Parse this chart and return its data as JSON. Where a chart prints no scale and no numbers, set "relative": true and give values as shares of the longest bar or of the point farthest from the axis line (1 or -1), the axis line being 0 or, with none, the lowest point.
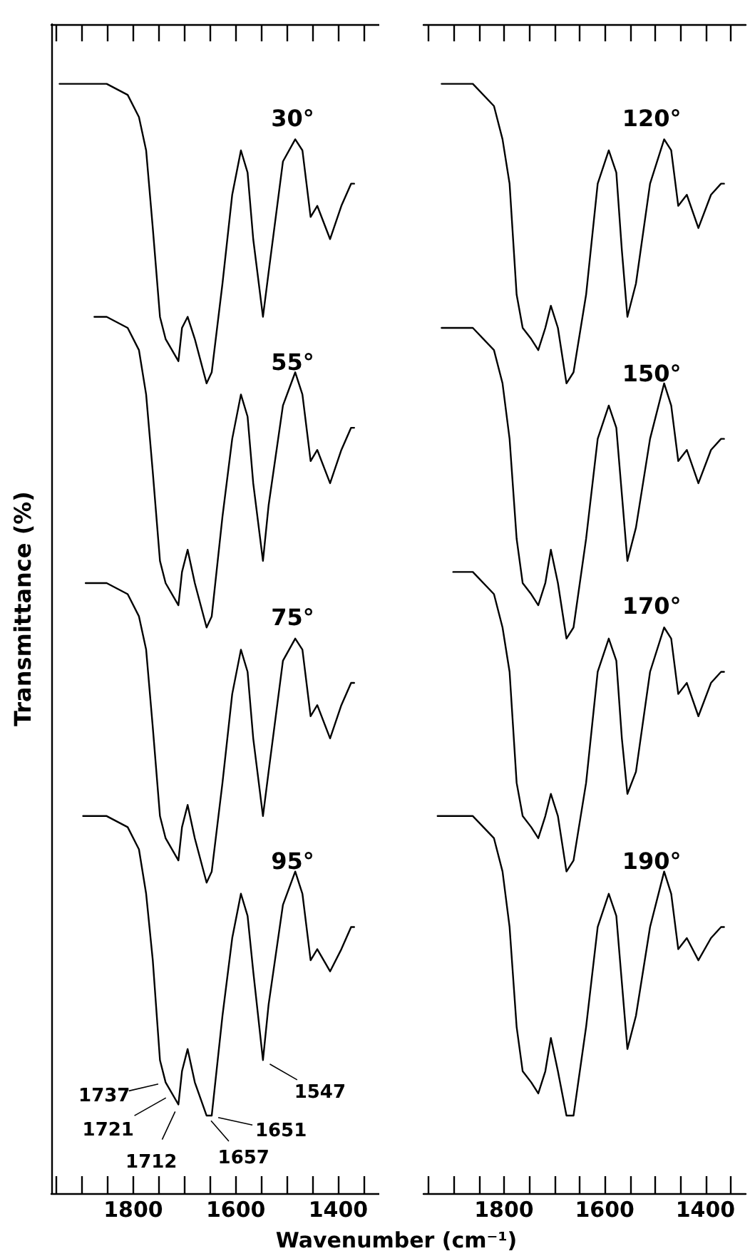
{
  "chart_data": [
    {
      "type": "line",
      "ylabel": "Transmittance (%)",
      "xlabel": "Wavenumber (cm⁻¹)",
      "relative": true,
      "xlim": [
        1960,
        1320
      ],
      "xticks": [
        {
          "value": 1950,
          "label": null
        },
        {
          "value": 1900,
          "label": null
        },
        {
          "value": 1850,
          "label": null
        },
        1800,
        {
          "value": 1750,
          "label": null
        },
        {
          "value": 1700,
          "label": null
        },
        {
          "value": 1650,
          "label": null
        },
        1600,
        {
          "value": 1550,
          "label": null
        },
        {
          "value": 1500,
          "label": null
        },
        {
          "value": 1450,
          "label": null
        },
        1400,
        {
          "value": 1350,
          "label": null
        }
      ],
      "tick_labels": "x",
      "grid": false,
      "legend": false,
      "marker": "none",
      "series": [
        {
          "name": "30°",
          "color": "#000000",
          "x": [
            1944,
            1852,
            1811,
            1789,
            1775,
            1762,
            1748,
            1737,
            1712,
            1705,
            1694,
            1680,
            1657,
            1647,
            1626,
            1607,
            1590,
            1577,
            1566,
            1547,
            1536,
            1508,
            1484,
            1470,
            1454,
            1441,
            1416,
            1394,
            1375,
            1369
          ],
          "values": [
            1.0,
            1.0,
            0.99,
            0.97,
            0.94,
            0.87,
            0.79,
            0.77,
            0.75,
            0.78,
            0.79,
            0.77,
            0.73,
            0.74,
            0.82,
            0.9,
            0.94,
            0.92,
            0.86,
            0.79,
            0.83,
            0.93,
            0.95,
            0.94,
            0.88,
            0.89,
            0.86,
            0.89,
            0.91,
            0.91
          ]
        },
        {
          "name": "55°",
          "color": "#000000",
          "x": [
            1876,
            1852,
            1811,
            1789,
            1775,
            1762,
            1748,
            1737,
            1712,
            1705,
            1694,
            1680,
            1657,
            1647,
            1626,
            1607,
            1590,
            1577,
            1566,
            1547,
            1536,
            1508,
            1484,
            1470,
            1454,
            1441,
            1416,
            1394,
            1375,
            1369
          ],
          "values": [
            0.79,
            0.79,
            0.78,
            0.76,
            0.72,
            0.65,
            0.57,
            0.55,
            0.53,
            0.56,
            0.58,
            0.55,
            0.51,
            0.52,
            0.61,
            0.68,
            0.72,
            0.7,
            0.64,
            0.57,
            0.62,
            0.71,
            0.74,
            0.72,
            0.66,
            0.67,
            0.64,
            0.67,
            0.69,
            0.69
          ]
        },
        {
          "name": "75°",
          "color": "#000000",
          "x": [
            1893,
            1852,
            1811,
            1789,
            1775,
            1762,
            1748,
            1737,
            1712,
            1705,
            1694,
            1680,
            1657,
            1647,
            1626,
            1607,
            1590,
            1577,
            1566,
            1547,
            1536,
            1508,
            1484,
            1470,
            1454,
            1441,
            1416,
            1394,
            1375,
            1369
          ],
          "values": [
            0.55,
            0.55,
            0.54,
            0.52,
            0.49,
            0.42,
            0.34,
            0.32,
            0.3,
            0.33,
            0.35,
            0.32,
            0.28,
            0.29,
            0.37,
            0.45,
            0.49,
            0.47,
            0.41,
            0.34,
            0.38,
            0.48,
            0.5,
            0.49,
            0.43,
            0.44,
            0.41,
            0.44,
            0.46,
            0.46
          ]
        },
        {
          "name": "95°",
          "color": "#000000",
          "x": [
            1898,
            1852,
            1811,
            1789,
            1775,
            1762,
            1748,
            1737,
            1712,
            1705,
            1694,
            1680,
            1657,
            1647,
            1626,
            1607,
            1590,
            1577,
            1566,
            1547,
            1536,
            1508,
            1484,
            1470,
            1454,
            1441,
            1416,
            1394,
            1375,
            1369
          ],
          "values": [
            0.34,
            0.34,
            0.33,
            0.31,
            0.27,
            0.21,
            0.12,
            0.1,
            0.08,
            0.11,
            0.13,
            0.1,
            0.07,
            0.07,
            0.16,
            0.23,
            0.27,
            0.25,
            0.2,
            0.12,
            0.17,
            0.26,
            0.29,
            0.27,
            0.21,
            0.22,
            0.2,
            0.22,
            0.24,
            0.24
          ]
        }
      ],
      "annotations": [
        {
          "text": "1737",
          "x": 1737,
          "y": 0.1
        },
        {
          "text": "1721",
          "x": 1721,
          "y": 0.09
        },
        {
          "text": "1712",
          "x": 1712,
          "y": 0.08
        },
        {
          "text": "1657",
          "x": 1657,
          "y": 0.07
        },
        {
          "text": "1651",
          "x": 1651,
          "y": 0.07
        },
        {
          "text": "1547",
          "x": 1547,
          "y": 0.12
        }
      ]
    },
    {
      "type": "line",
      "relative": true,
      "xlim": [
        1960,
        1320
      ],
      "xticks": [
        {
          "value": 1950,
          "label": null
        },
        {
          "value": 1900,
          "label": null
        },
        {
          "value": 1850,
          "label": null
        },
        1800,
        {
          "value": 1750,
          "label": null
        },
        {
          "value": 1700,
          "label": null
        },
        {
          "value": 1650,
          "label": null
        },
        1600,
        {
          "value": 1550,
          "label": null
        },
        {
          "value": 1500,
          "label": null
        },
        {
          "value": 1450,
          "label": null
        },
        1400,
        {
          "value": 1350,
          "label": null
        }
      ],
      "tick_labels": "x",
      "grid": false,
      "legend": false,
      "marker": "none",
      "series": [
        {
          "name": "120°",
          "color": "#000000",
          "x": [
            1924,
            1862,
            1820,
            1803,
            1789,
            1775,
            1763,
            1746,
            1732,
            1718,
            1707,
            1693,
            1676,
            1662,
            1637,
            1614,
            1592,
            1577,
            1566,
            1555,
            1538,
            1510,
            1482,
            1468,
            1454,
            1437,
            1414,
            1389,
            1369,
            1363
          ],
          "values": [
            1.0,
            1.0,
            0.98,
            0.95,
            0.91,
            0.81,
            0.78,
            0.77,
            0.76,
            0.78,
            0.8,
            0.78,
            0.73,
            0.74,
            0.81,
            0.91,
            0.94,
            0.92,
            0.85,
            0.79,
            0.82,
            0.91,
            0.95,
            0.94,
            0.89,
            0.9,
            0.87,
            0.9,
            0.91,
            0.91
          ]
        },
        {
          "name": "150°",
          "color": "#000000",
          "x": [
            1924,
            1862,
            1820,
            1803,
            1789,
            1775,
            1763,
            1746,
            1732,
            1718,
            1707,
            1693,
            1676,
            1662,
            1637,
            1614,
            1592,
            1577,
            1566,
            1555,
            1538,
            1510,
            1482,
            1468,
            1454,
            1437,
            1414,
            1389,
            1369,
            1363
          ],
          "values": [
            0.78,
            0.78,
            0.76,
            0.73,
            0.68,
            0.59,
            0.55,
            0.54,
            0.53,
            0.55,
            0.58,
            0.55,
            0.5,
            0.51,
            0.59,
            0.68,
            0.71,
            0.69,
            0.63,
            0.57,
            0.6,
            0.68,
            0.73,
            0.71,
            0.66,
            0.67,
            0.64,
            0.67,
            0.68,
            0.68
          ]
        },
        {
          "name": "170°",
          "color": "#000000",
          "x": [
            1901,
            1862,
            1820,
            1803,
            1789,
            1775,
            1763,
            1746,
            1732,
            1718,
            1707,
            1693,
            1676,
            1662,
            1637,
            1614,
            1592,
            1577,
            1566,
            1555,
            1538,
            1510,
            1482,
            1468,
            1454,
            1437,
            1414,
            1389,
            1369,
            1363
          ],
          "values": [
            0.56,
            0.56,
            0.54,
            0.51,
            0.47,
            0.37,
            0.34,
            0.33,
            0.32,
            0.34,
            0.36,
            0.34,
            0.29,
            0.3,
            0.37,
            0.47,
            0.5,
            0.48,
            0.41,
            0.36,
            0.38,
            0.47,
            0.51,
            0.5,
            0.45,
            0.46,
            0.43,
            0.46,
            0.47,
            0.47
          ]
        },
        {
          "name": "190°",
          "color": "#000000",
          "x": [
            1932,
            1862,
            1820,
            1803,
            1789,
            1775,
            1763,
            1746,
            1732,
            1718,
            1707,
            1693,
            1676,
            1662,
            1637,
            1614,
            1592,
            1577,
            1566,
            1555,
            1538,
            1510,
            1482,
            1468,
            1454,
            1437,
            1414,
            1389,
            1369,
            1363
          ],
          "values": [
            0.34,
            0.34,
            0.32,
            0.29,
            0.24,
            0.15,
            0.11,
            0.1,
            0.09,
            0.11,
            0.14,
            0.11,
            0.07,
            0.07,
            0.15,
            0.24,
            0.27,
            0.25,
            0.19,
            0.13,
            0.16,
            0.24,
            0.29,
            0.27,
            0.22,
            0.23,
            0.21,
            0.23,
            0.24,
            0.24
          ]
        }
      ]
    }
  ]
}
